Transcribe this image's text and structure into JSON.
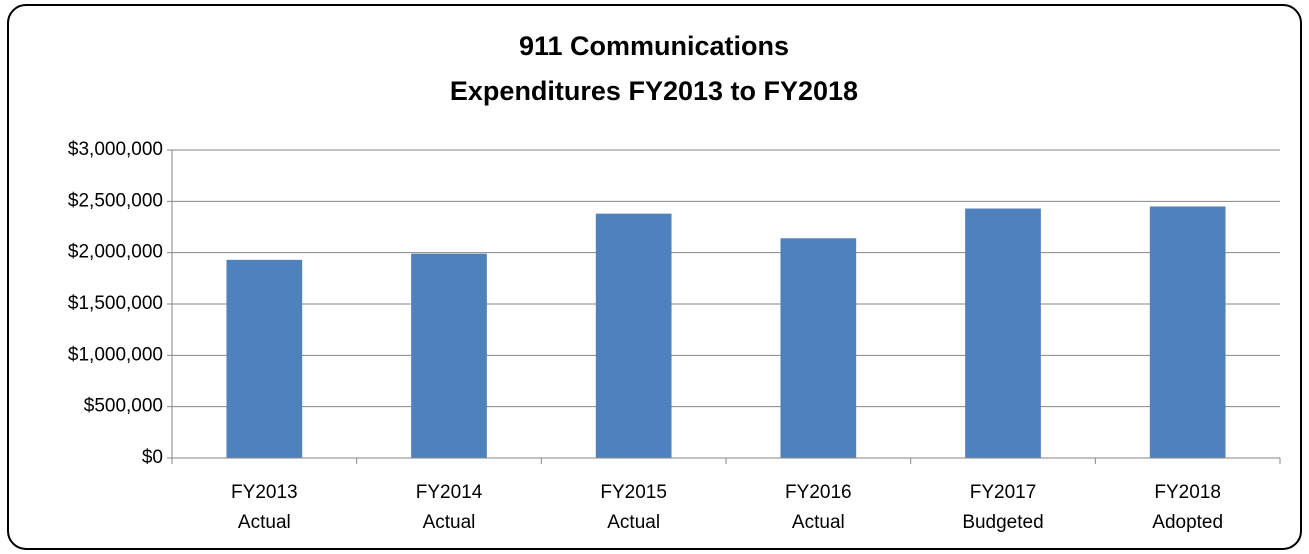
{
  "chart_data": {
    "type": "bar",
    "title": [
      "911 Communications",
      "Expenditures FY2013 to FY2018"
    ],
    "categories": [
      [
        "FY2013",
        "Actual"
      ],
      [
        "FY2014",
        "Actual"
      ],
      [
        "FY2015",
        "Actual"
      ],
      [
        "FY2016",
        "Actual"
      ],
      [
        "FY2017",
        "Budgeted"
      ],
      [
        "FY2018",
        "Adopted"
      ]
    ],
    "values": [
      1930000,
      1990000,
      2380000,
      2140000,
      2430000,
      2450000
    ],
    "color": "#4f81bd",
    "ylim": [
      0,
      3000000
    ],
    "yticks": [
      {
        "value": 0,
        "label": "$0"
      },
      {
        "value": 500000,
        "label": "$500,000"
      },
      {
        "value": 1000000,
        "label": "$1,000,000"
      },
      {
        "value": 1500000,
        "label": "$1,500,000"
      },
      {
        "value": 2000000,
        "label": "$2,000,000"
      },
      {
        "value": 2500000,
        "label": "$2,500,000"
      },
      {
        "value": 3000000,
        "label": "$3,000,000"
      }
    ],
    "grid": true
  }
}
